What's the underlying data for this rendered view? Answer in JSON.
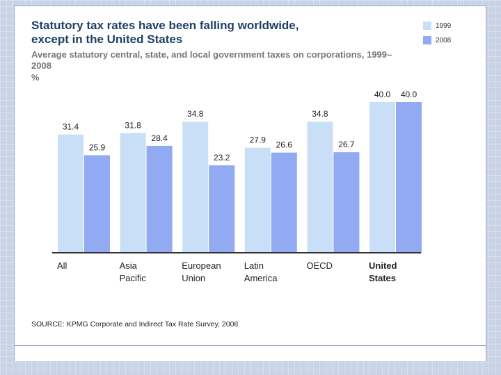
{
  "chart_data": {
    "type": "bar",
    "title": "Statutory tax rates have been falling worldwide, except in the United States",
    "subtitle": "Average statutory central, state, and local government taxes on corporations, 1999–2008",
    "unit": "%",
    "categories": [
      {
        "lines": [
          "All"
        ],
        "bold": false
      },
      {
        "lines": [
          "Asia",
          "Pacific"
        ],
        "bold": false
      },
      {
        "lines": [
          "European",
          "Union"
        ],
        "bold": false
      },
      {
        "lines": [
          "Latin",
          "America"
        ],
        "bold": false
      },
      {
        "lines": [
          "OECD"
        ],
        "bold": false
      },
      {
        "lines": [
          "United",
          "States"
        ],
        "bold": true
      }
    ],
    "series": [
      {
        "name": "1999",
        "color": "#c9dff8",
        "values": [
          31.4,
          31.8,
          34.8,
          27.9,
          34.8,
          40.0
        ]
      },
      {
        "name": "2008",
        "color": "#91aaf2",
        "values": [
          25.9,
          28.4,
          23.2,
          26.6,
          26.7,
          40.0
        ]
      }
    ],
    "ylim": [
      0,
      40
    ],
    "legend_position": "top-right",
    "source": "SOURCE: KPMG Corporate and Indirect Tax Rate Survey, 2008"
  }
}
